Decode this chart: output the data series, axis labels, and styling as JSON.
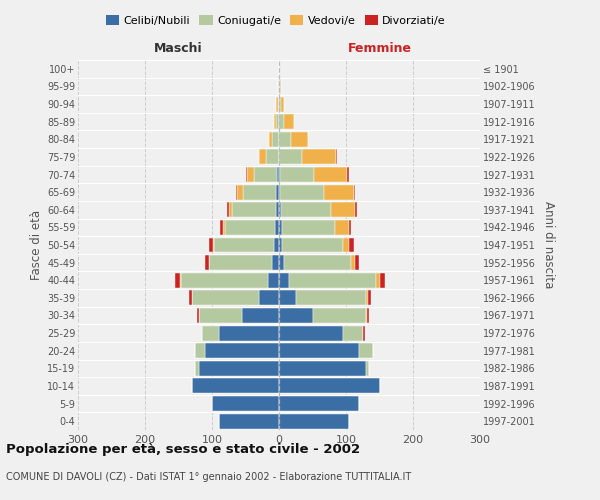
{
  "age_groups": [
    "0-4",
    "5-9",
    "10-14",
    "15-19",
    "20-24",
    "25-29",
    "30-34",
    "35-39",
    "40-44",
    "45-49",
    "50-54",
    "55-59",
    "60-64",
    "65-69",
    "70-74",
    "75-79",
    "80-84",
    "85-89",
    "90-94",
    "95-99",
    "100+"
  ],
  "birth_years": [
    "1997-2001",
    "1992-1996",
    "1987-1991",
    "1982-1986",
    "1977-1981",
    "1972-1976",
    "1967-1971",
    "1962-1966",
    "1957-1961",
    "1952-1956",
    "1947-1951",
    "1942-1946",
    "1937-1941",
    "1932-1936",
    "1927-1931",
    "1922-1926",
    "1917-1921",
    "1912-1916",
    "1907-1911",
    "1902-1906",
    "≤ 1901"
  ],
  "males_celibe": [
    90,
    100,
    130,
    120,
    110,
    90,
    55,
    30,
    17,
    10,
    7,
    6,
    5,
    4,
    3,
    0,
    0,
    0,
    0,
    0,
    0
  ],
  "males_coniugato": [
    0,
    0,
    0,
    5,
    15,
    25,
    65,
    100,
    130,
    95,
    90,
    75,
    65,
    50,
    35,
    20,
    10,
    5,
    2,
    1,
    0
  ],
  "males_vedovo": [
    0,
    0,
    0,
    0,
    0,
    0,
    0,
    0,
    1,
    0,
    1,
    3,
    5,
    8,
    10,
    10,
    5,
    3,
    2,
    0,
    0
  ],
  "males_divorziato": [
    0,
    0,
    0,
    0,
    0,
    0,
    2,
    5,
    7,
    5,
    6,
    4,
    3,
    2,
    1,
    0,
    0,
    0,
    0,
    0,
    0
  ],
  "females_celibe": [
    105,
    120,
    150,
    130,
    120,
    95,
    50,
    25,
    15,
    8,
    5,
    4,
    3,
    2,
    2,
    0,
    0,
    0,
    0,
    0,
    0
  ],
  "females_coniugato": [
    0,
    0,
    0,
    5,
    20,
    30,
    80,
    105,
    130,
    100,
    90,
    80,
    75,
    65,
    50,
    35,
    18,
    8,
    3,
    1,
    0
  ],
  "females_vedovo": [
    0,
    0,
    0,
    0,
    0,
    0,
    1,
    3,
    5,
    5,
    10,
    20,
    35,
    45,
    50,
    50,
    25,
    15,
    5,
    2,
    0
  ],
  "females_divorziato": [
    0,
    0,
    0,
    0,
    0,
    4,
    4,
    5,
    8,
    6,
    7,
    3,
    3,
    2,
    2,
    1,
    1,
    0,
    0,
    0,
    0
  ],
  "color_celibe": "#3a6ea5",
  "color_coniugato": "#b5c9a0",
  "color_vedovo": "#f0b04a",
  "color_divorziato": "#cc2222",
  "title": "Popolazione per età, sesso e stato civile - 2002",
  "subtitle": "COMUNE DI DAVOLI (CZ) - Dati ISTAT 1° gennaio 2002 - Elaborazione TUTTITALIA.IT",
  "label_maschi": "Maschi",
  "label_femmine": "Femmine",
  "ylabel_left": "Fasce di età",
  "ylabel_right": "Anni di nascita",
  "xlim": 300,
  "background_color": "#f0f0f0",
  "grid_color": "#cccccc"
}
